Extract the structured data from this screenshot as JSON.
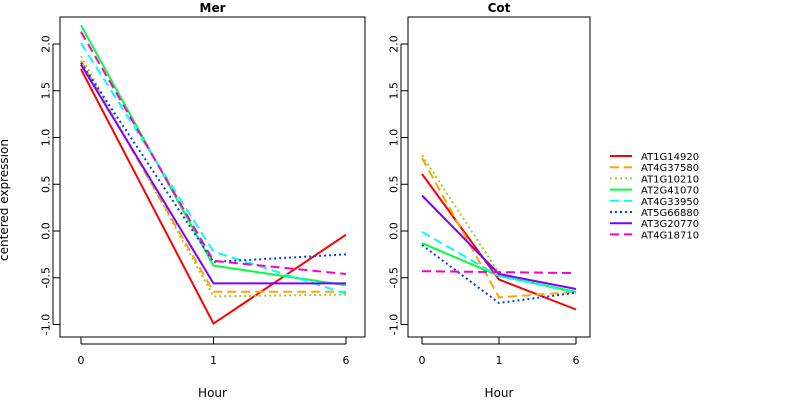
{
  "figure": {
    "ylabel": "centered expression"
  },
  "legend": {
    "placement": "right",
    "entries": [
      {
        "name": "AT1G14920",
        "color": "#ff0000",
        "dash": "solid"
      },
      {
        "name": "AT4G37580",
        "color": "#ffa500",
        "dash": "longdash"
      },
      {
        "name": "AT1G10210",
        "color": "#9acd32",
        "dash": "dotted"
      },
      {
        "name": "AT2G41070",
        "color": "#00ff40",
        "dash": "solid"
      },
      {
        "name": "AT4G33950",
        "color": "#00ffff",
        "dash": "longdash"
      },
      {
        "name": "AT5G66880",
        "color": "#0040ff",
        "dash": "dotted"
      },
      {
        "name": "AT3G20770",
        "color": "#8000ff",
        "dash": "solid"
      },
      {
        "name": "AT4G18710",
        "color": "#ff00c0",
        "dash": "longdash"
      }
    ]
  },
  "chart_data": [
    {
      "type": "line",
      "title": "Mer",
      "xlabel": "Hour",
      "ylabel": "centered expression",
      "x": [
        "0",
        "1",
        "6"
      ],
      "ylim": [
        -1.1,
        2.3
      ],
      "yticks": [
        "-1.0",
        "-0.5",
        "0.0",
        "0.5",
        "1.0",
        "1.5",
        "2.0"
      ],
      "series": [
        {
          "name": "AT1G14920",
          "values": [
            1.73,
            -0.99,
            -0.04
          ]
        },
        {
          "name": "AT4G37580",
          "values": [
            1.82,
            -0.65,
            -0.65
          ]
        },
        {
          "name": "AT1G10210",
          "values": [
            1.87,
            -0.7,
            -0.68
          ]
        },
        {
          "name": "AT2G41070",
          "values": [
            2.2,
            -0.37,
            -0.58
          ]
        },
        {
          "name": "AT4G33950",
          "values": [
            2.01,
            -0.22,
            -0.67
          ]
        },
        {
          "name": "AT5G66880",
          "values": [
            1.8,
            -0.33,
            -0.25
          ]
        },
        {
          "name": "AT3G20770",
          "values": [
            1.78,
            -0.56,
            -0.56
          ]
        },
        {
          "name": "AT4G18710",
          "values": [
            2.13,
            -0.32,
            -0.46
          ]
        }
      ]
    },
    {
      "type": "line",
      "title": "Cot",
      "xlabel": "Hour",
      "x": [
        "0",
        "1",
        "6"
      ],
      "ylim": [
        -1.1,
        2.3
      ],
      "yticks": [
        "-1.0",
        "-0.5",
        "0.0",
        "0.5",
        "1.0",
        "1.5",
        "2.0"
      ],
      "series": [
        {
          "name": "AT1G14920",
          "values": [
            0.61,
            -0.52,
            -0.84
          ]
        },
        {
          "name": "AT4G37580",
          "values": [
            0.78,
            -0.71,
            -0.65
          ]
        },
        {
          "name": "AT1G10210",
          "values": [
            0.81,
            -0.45,
            -0.67
          ]
        },
        {
          "name": "AT2G41070",
          "values": [
            -0.13,
            -0.48,
            -0.65
          ]
        },
        {
          "name": "AT4G33950",
          "values": [
            -0.01,
            -0.48,
            -0.66
          ]
        },
        {
          "name": "AT5G66880",
          "values": [
            -0.15,
            -0.77,
            -0.66
          ]
        },
        {
          "name": "AT3G20770",
          "values": [
            0.38,
            -0.46,
            -0.62
          ]
        },
        {
          "name": "AT4G18710",
          "values": [
            -0.43,
            -0.44,
            -0.45
          ]
        }
      ]
    }
  ]
}
